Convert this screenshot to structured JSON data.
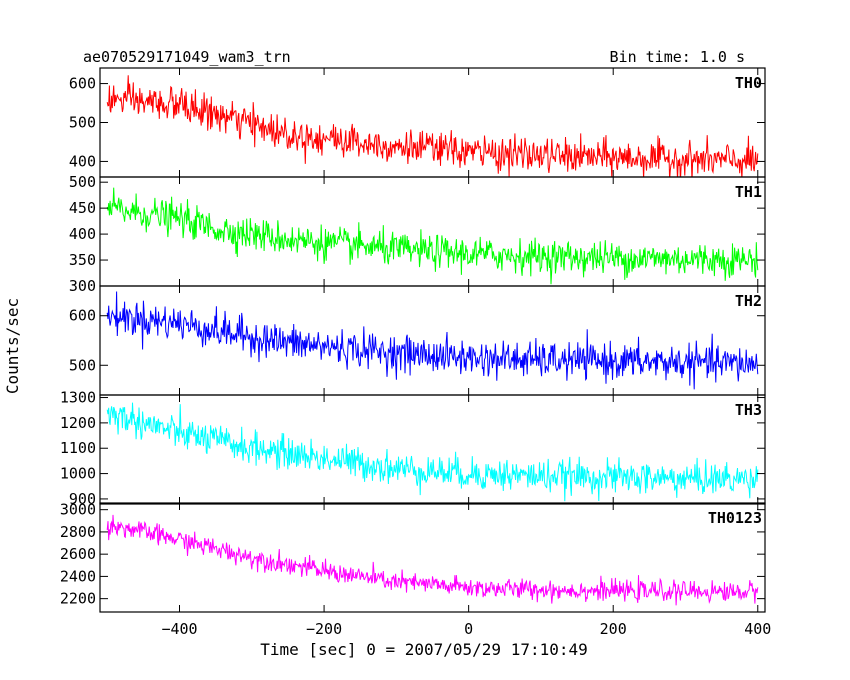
{
  "header": {
    "title": "ae070529171049_wam3_trn",
    "bin_time": "Bin time: 1.0 s"
  },
  "chart_data": {
    "type": "line",
    "title": "ae070529171049_wam3_trn",
    "subtitle": "Bin time: 1.0 s",
    "xlabel": "Time [sec] 0 = 2007/05/29 17:10:49",
    "ylabel": "Counts/sec",
    "xlim": [
      -510,
      410
    ],
    "xticks": [
      -400,
      -200,
      0,
      200,
      400
    ],
    "xtick_labels": [
      "−400",
      "−200",
      "0",
      "200",
      "400"
    ],
    "bin_time_s": 1.0,
    "panels": [
      {
        "name": "TH0",
        "color": "#ff0000",
        "ylim": [
          360,
          640
        ],
        "yticks": [
          400,
          500,
          600
        ],
        "trend_points": [
          [
            -500,
            560
          ],
          [
            -400,
            545
          ],
          [
            -350,
            520
          ],
          [
            -250,
            470
          ],
          [
            -100,
            440
          ],
          [
            0,
            425
          ],
          [
            100,
            415
          ],
          [
            200,
            410
          ],
          [
            300,
            405
          ],
          [
            400,
            400
          ]
        ],
        "noise_sd": 22
      },
      {
        "name": "TH1",
        "color": "#00ff00",
        "ylim": [
          300,
          510
        ],
        "yticks": [
          300,
          350,
          400,
          450,
          500
        ],
        "trend_points": [
          [
            -500,
            450
          ],
          [
            -400,
            430
          ],
          [
            -350,
            410
          ],
          [
            -250,
            390
          ],
          [
            -100,
            370
          ],
          [
            0,
            362
          ],
          [
            100,
            357
          ],
          [
            200,
            354
          ],
          [
            300,
            352
          ],
          [
            400,
            350
          ]
        ],
        "noise_sd": 16
      },
      {
        "name": "TH2",
        "color": "#0000ff",
        "ylim": [
          440,
          660
        ],
        "yticks": [
          500,
          600
        ],
        "trend_points": [
          [
            -500,
            600
          ],
          [
            -400,
            585
          ],
          [
            -350,
            570
          ],
          [
            -250,
            545
          ],
          [
            -100,
            525
          ],
          [
            0,
            515
          ],
          [
            100,
            510
          ],
          [
            200,
            508
          ],
          [
            300,
            505
          ],
          [
            400,
            503
          ]
        ],
        "noise_sd": 18
      },
      {
        "name": "TH3",
        "color": "#00ffff",
        "ylim": [
          880,
          1310
        ],
        "yticks": [
          900,
          1000,
          1100,
          1200,
          1300
        ],
        "trend_points": [
          [
            -500,
            1240
          ],
          [
            -400,
            1160
          ],
          [
            -300,
            1100
          ],
          [
            -200,
            1060
          ],
          [
            -100,
            1020
          ],
          [
            0,
            1000
          ],
          [
            100,
            990
          ],
          [
            200,
            985
          ],
          [
            300,
            980
          ],
          [
            400,
            978
          ]
        ],
        "noise_sd": 32
      },
      {
        "name": "TH0123",
        "color": "#ff00ff",
        "ylim": [
          2080,
          3060
        ],
        "yticks": [
          2200,
          2400,
          2600,
          2800,
          3000
        ],
        "trend_points": [
          [
            -500,
            2870
          ],
          [
            -400,
            2730
          ],
          [
            -300,
            2570
          ],
          [
            -200,
            2450
          ],
          [
            -100,
            2350
          ],
          [
            0,
            2300
          ],
          [
            100,
            2280
          ],
          [
            200,
            2270
          ],
          [
            300,
            2265
          ],
          [
            400,
            2260
          ]
        ],
        "noise_sd": 45
      }
    ]
  }
}
